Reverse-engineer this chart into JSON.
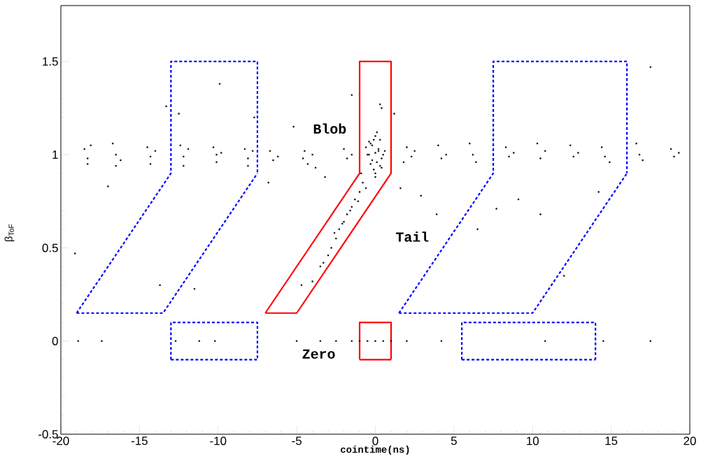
{
  "chart_data": {
    "type": "scatter",
    "xlabel": "cointime(ns)",
    "ylabel": "β$_{ToF}$",
    "xlim": [
      -20,
      20
    ],
    "ylim": [
      -0.5,
      1.8
    ],
    "xticks": [
      -20,
      -15,
      -10,
      -5,
      0,
      5,
      10,
      15,
      20
    ],
    "yticks": [
      -0.5,
      0,
      0.5,
      1,
      1.5
    ],
    "marker": "square",
    "annotations": [
      "Blob",
      "Tail",
      "Zero"
    ],
    "series": [
      {
        "color": "#000000",
        "x": [
          -18.5,
          -18.3,
          -18.1,
          -18.3,
          -16.7,
          -16.5,
          -16.2,
          -16.5,
          -14.5,
          -14.3,
          -14.0,
          -14.3,
          -12.4,
          -12.2,
          -11.9,
          -12.2,
          -10.3,
          -10.1,
          -9.8,
          -10.1,
          -8.3,
          -8.1,
          -7.8,
          -8.1,
          -6.7,
          -6.5,
          -6.2,
          -4.6,
          -4.3,
          -4.0,
          -3.8,
          -4.5,
          -2.0,
          -1.8,
          -1.5,
          2.0,
          2.3,
          1.8,
          2.5,
          4.0,
          4.2,
          4.5,
          6.0,
          6.2,
          6.4,
          8.3,
          8.5,
          8.8,
          10.3,
          10.5,
          10.8,
          12.4,
          12.6,
          12.9,
          14.4,
          14.6,
          14.9,
          16.6,
          16.8,
          17.0,
          18.8,
          19.0,
          19.3,
          -0.4,
          -0.2,
          0.0,
          0.2,
          0.4,
          -0.3,
          0.3,
          -0.1,
          0.1,
          -0.5,
          0.5,
          0.0,
          -0.2,
          0.2,
          -0.3,
          0.3,
          0.0,
          -0.1,
          0.1,
          -0.6,
          0.6,
          0.0,
          -0.4,
          0.4,
          -0.8,
          -1.0,
          -1.3,
          -1.5,
          -1.8,
          -2.0,
          -2.3,
          -2.5,
          -2.8,
          -3.0,
          -3.3,
          -0.6,
          -1.1,
          -1.6,
          -2.1,
          -2.6,
          -3.5,
          -4.0,
          -0.9,
          -12.5,
          -13.3,
          -9.9,
          -7.7,
          -5.2,
          -6.8,
          -3.2,
          -1.5,
          0.3,
          1.2,
          1.6,
          2.9,
          3.9,
          6.5,
          7.7,
          9.1,
          10.5,
          12.0,
          14.2,
          17.5,
          -11.5,
          -13.7,
          -19.1,
          -17.0,
          -4.7,
          0.4,
          -18.9,
          -17.4,
          -12.7,
          -11.2,
          -10.2,
          -5.0,
          -3.5,
          -2.5,
          -1.5,
          -1.0,
          -0.5,
          0.0,
          0.5,
          1.0,
          2.0,
          4.2,
          10.8,
          14.5,
          17.5
        ],
        "values": [
          1.03,
          0.98,
          1.05,
          0.95,
          1.06,
          1.0,
          0.97,
          0.94,
          1.04,
          0.99,
          1.02,
          0.95,
          1.05,
          0.99,
          1.03,
          0.94,
          1.04,
          1.0,
          1.01,
          0.96,
          1.03,
          0.98,
          1.02,
          0.94,
          1.02,
          0.97,
          0.99,
          0.98,
          0.95,
          1.0,
          0.93,
          1.02,
          1.03,
          0.98,
          1.0,
          1.04,
          0.99,
          0.96,
          1.02,
          1.05,
          0.98,
          1.0,
          1.06,
          1.0,
          0.96,
          1.04,
          0.99,
          1.01,
          1.06,
          0.98,
          1.02,
          1.05,
          0.99,
          1.01,
          1.04,
          0.99,
          0.96,
          1.06,
          1.0,
          0.97,
          1.03,
          0.99,
          1.01,
          1.0,
          1.05,
          1.1,
          1.03,
          0.98,
          0.95,
          1.08,
          0.92,
          1.12,
          1.0,
          1.0,
          0.9,
          0.97,
          1.02,
          1.06,
          0.94,
          1.01,
          1.08,
          0.96,
          1.04,
          1.02,
          0.88,
          1.07,
          0.93,
          0.85,
          0.8,
          0.76,
          0.72,
          0.68,
          0.64,
          0.6,
          0.55,
          0.5,
          0.46,
          0.42,
          0.82,
          0.75,
          0.7,
          0.63,
          0.58,
          0.4,
          0.32,
          0.9,
          1.22,
          1.26,
          1.38,
          1.2,
          1.15,
          0.85,
          0.88,
          1.32,
          1.27,
          1.22,
          0.82,
          0.78,
          0.68,
          0.6,
          0.71,
          0.76,
          0.68,
          0.35,
          0.8,
          1.47,
          0.28,
          0.3,
          0.47,
          0.83,
          0.3,
          1.25,
          0.0,
          0.0,
          0.0,
          0.0,
          0.0,
          0.0,
          0.0,
          0.0,
          0.0,
          0.0,
          0.0,
          0.0,
          0.0,
          0.0,
          0.0,
          0.0,
          0.0,
          0.0,
          0.0
        ]
      },
      {
        "type": "line",
        "color": "#ff0000",
        "line_style": "solid",
        "marker": "none",
        "x": [
          -7,
          -1,
          -1,
          1,
          1,
          null,
          -7,
          -5,
          1,
          1
        ],
        "values": [
          0.15,
          0.9,
          1.5,
          1.5,
          0.9,
          null,
          0.15,
          0.15,
          0.9,
          1.5
        ]
      },
      {
        "type": "line",
        "color": "#ff0000",
        "line_style": "solid",
        "marker": "none",
        "x": [
          -1,
          -1,
          1,
          1,
          null,
          -1,
          1
        ],
        "values": [
          -0.1,
          0.1,
          0.1,
          -0.1,
          null,
          -0.1,
          -0.1
        ]
      },
      {
        "type": "line",
        "color": "#0000ff",
        "line_style": "dashed",
        "marker": "none",
        "x": [
          -19,
          -13,
          -13,
          -7.5,
          -7.5,
          null,
          -19,
          -13.5,
          -7.5
        ],
        "values": [
          0.15,
          0.9,
          1.5,
          1.5,
          0.9,
          null,
          0.15,
          0.15,
          0.9
        ]
      },
      {
        "type": "line",
        "color": "#0000ff",
        "line_style": "dashed",
        "marker": "none",
        "x": [
          1.5,
          7.5,
          7.5,
          16,
          16,
          null,
          1.5,
          10,
          16
        ],
        "values": [
          0.15,
          0.9,
          1.5,
          1.5,
          0.9,
          null,
          0.15,
          0.15,
          0.9
        ]
      },
      {
        "type": "line",
        "color": "#0000ff",
        "line_style": "dashed",
        "marker": "none",
        "x": [
          -13,
          -13,
          -7.5,
          -7.5,
          null,
          -13,
          -7.5
        ],
        "values": [
          -0.1,
          0.1,
          0.1,
          -0.1,
          null,
          -0.1,
          -0.1
        ]
      },
      {
        "type": "line",
        "color": "#0000ff",
        "line_style": "dashed",
        "marker": "none",
        "x": [
          5.5,
          5.5,
          14,
          14,
          null,
          5.5,
          14
        ],
        "values": [
          -0.1,
          0.1,
          0.1,
          -0.1,
          null,
          -0.1,
          -0.1
        ]
      }
    ]
  }
}
